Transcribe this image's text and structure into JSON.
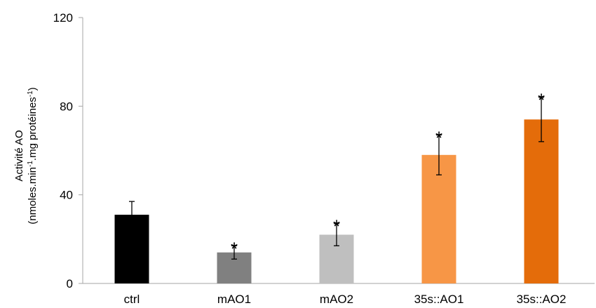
{
  "chart_data": {
    "type": "bar",
    "title": "",
    "ylabel_line1": "Activité AO",
    "ylabel_line2_parts": [
      "(nmoles.min",
      "-1",
      ".mg protéines",
      "-1",
      ")"
    ],
    "ylim": [
      0,
      120
    ],
    "yticks": [
      0,
      40,
      80,
      120
    ],
    "yticks_labels": [
      "0",
      "40",
      "80",
      "120"
    ],
    "grid": false,
    "legend": "none",
    "categories": [
      "ctrl",
      "mAO1",
      "mAO2",
      "35s::AO1",
      "35s::AO2"
    ],
    "values": [
      31,
      14,
      22,
      58,
      74
    ],
    "errors": [
      6,
      3,
      5,
      9,
      10
    ],
    "significance": [
      "",
      "*",
      "*",
      "*",
      "*"
    ],
    "colors": [
      "#000000",
      "#808080",
      "#bfbfbf",
      "#f79646",
      "#e46c0a"
    ]
  }
}
